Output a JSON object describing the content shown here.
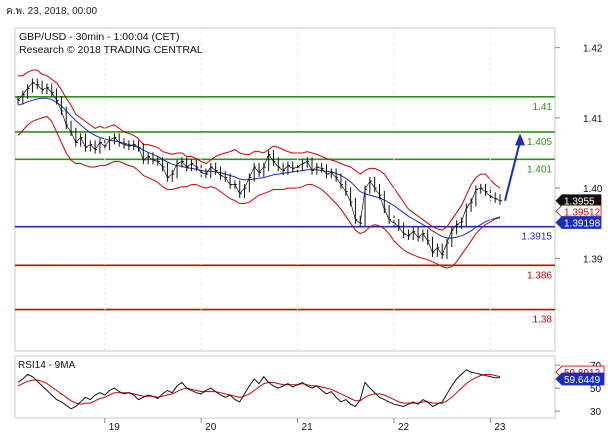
{
  "header": {
    "date_label": "ค.พ. 23, 2018, 00:00",
    "symbol_line": "GBP/USD - 30min - 1:00:04 (CET)",
    "copyright": "Research © 2018 TRADING CENTRAL"
  },
  "colors": {
    "price": "#111111",
    "bollinger": "#cc0000",
    "ma_blue": "#1a2dbd",
    "resistance": "#2f8f1f",
    "support_red": "#cc0000",
    "pivot_blue": "#1a2dbd",
    "arrow": "#1a2dbd",
    "rsi": "#111111",
    "rsi_ma": "#cc0000",
    "tag_black": "#111111",
    "tag_red": "#cc0000",
    "tag_blue": "#1a2dbd"
  },
  "chart_data": {
    "type": "line",
    "main_panel": {
      "y_ticks": [
        "1.42",
        "1.41",
        "1.40",
        "1.39"
      ],
      "x_ticks": [
        "19",
        "20",
        "21",
        "22",
        "23"
      ],
      "ylim": [
        1.3768,
        1.4228
      ],
      "levels": [
        {
          "value": 1.413,
          "label": "1.41",
          "color": "#2f8f1f"
        },
        {
          "value": 1.408,
          "label": "1.405",
          "color": "#2f8f1f"
        },
        {
          "value": 1.4041,
          "label": "1.401",
          "color": "#2f8f1f"
        },
        {
          "value": 1.3945,
          "label": "1.3915",
          "color": "#1a2dbd"
        },
        {
          "value": 1.389,
          "label": "1.386",
          "color": "#cc0000"
        },
        {
          "value": 1.3827,
          "label": "1.38",
          "color": "#cc0000"
        }
      ],
      "price_tags": [
        {
          "label": "1.3955",
          "value": 1.3982,
          "style": "black"
        },
        {
          "label": "1.39512",
          "value": 1.3967,
          "style": "red"
        },
        {
          "label": "1.39198",
          "value": 1.3951,
          "style": "blue"
        }
      ],
      "close": [
        1.4125,
        1.4133,
        1.4142,
        1.415,
        1.4147,
        1.414,
        1.4143,
        1.4136,
        1.4125,
        1.411,
        1.409,
        1.408,
        1.4065,
        1.4072,
        1.4058,
        1.4062,
        1.4055,
        1.4065,
        1.406,
        1.4068,
        1.4072,
        1.4065,
        1.4062,
        1.406,
        1.4062,
        1.4058,
        1.404,
        1.4045,
        1.404,
        1.4038,
        1.403,
        1.4015,
        1.402,
        1.4035,
        1.4038,
        1.403,
        1.4035,
        1.403,
        1.4022,
        1.402,
        1.403,
        1.4025,
        1.4018,
        1.4015,
        1.4005,
        1.4005,
        1.3992,
        1.4,
        1.4015,
        1.403,
        1.4022,
        1.403,
        1.4048,
        1.4038,
        1.403,
        1.4025,
        1.4032,
        1.4028,
        1.403,
        1.4035,
        1.4038,
        1.4025,
        1.403,
        1.4028,
        1.402,
        1.4022,
        1.4015,
        1.4005,
        1.3995,
        1.398,
        1.3955,
        1.395,
        1.3998,
        1.401,
        1.4,
        1.399,
        1.397,
        1.3955,
        1.395,
        1.3945,
        1.3935,
        1.3932,
        1.3938,
        1.393,
        1.3935,
        1.3925,
        1.3908,
        1.3915,
        1.3905,
        1.3922,
        1.394,
        1.3948,
        1.3952,
        1.3972,
        1.398,
        1.3998,
        1.4,
        1.3995,
        1.3988,
        1.3985,
        1.3982
      ],
      "upper_band": [
        1.416,
        1.416,
        1.4165,
        1.4168,
        1.4168,
        1.4162,
        1.416,
        1.4155,
        1.415,
        1.414,
        1.4128,
        1.4118,
        1.4105,
        1.41,
        1.4095,
        1.409,
        1.4085,
        1.4088,
        1.4085,
        1.4088,
        1.409,
        1.4085,
        1.408,
        1.4078,
        1.4075,
        1.407,
        1.4062,
        1.4062,
        1.406,
        1.4058,
        1.4052,
        1.405,
        1.4048,
        1.405,
        1.405,
        1.4045,
        1.4045,
        1.4042,
        1.4038,
        1.4035,
        1.404,
        1.4045,
        1.4048,
        1.405,
        1.4052,
        1.4055,
        1.405,
        1.4048,
        1.4048,
        1.4052,
        1.4052,
        1.405,
        1.4055,
        1.406,
        1.4058,
        1.4055,
        1.4052,
        1.405,
        1.405,
        1.405,
        1.4052,
        1.405,
        1.4048,
        1.4045,
        1.4042,
        1.404,
        1.4038,
        1.4035,
        1.4032,
        1.403,
        1.4025,
        1.402,
        1.4025,
        1.4028,
        1.4028,
        1.4025,
        1.402,
        1.401,
        1.4,
        1.399,
        1.398,
        1.397,
        1.3965,
        1.396,
        1.3955,
        1.395,
        1.3945,
        1.3942,
        1.394,
        1.3945,
        1.3955,
        1.3965,
        1.3975,
        1.399,
        1.4005,
        1.4015,
        1.402,
        1.402,
        1.4012,
        1.4005,
        1.4
      ],
      "lower_band": [
        1.4075,
        1.4082,
        1.409,
        1.4095,
        1.4098,
        1.41,
        1.4102,
        1.4095,
        1.408,
        1.4065,
        1.405,
        1.404,
        1.4035,
        1.4035,
        1.4032,
        1.403,
        1.403,
        1.4032,
        1.4032,
        1.4035,
        1.4038,
        1.4038,
        1.4035,
        1.4032,
        1.403,
        1.4025,
        1.4018,
        1.4015,
        1.4012,
        1.4008,
        1.4002,
        1.3998,
        1.3998,
        1.4,
        1.4002,
        1.4002,
        1.4005,
        1.4005,
        1.4002,
        1.4,
        1.4002,
        1.4,
        1.3995,
        1.399,
        1.3985,
        1.3982,
        1.3978,
        1.3978,
        1.398,
        1.3985,
        1.399,
        1.3992,
        1.3995,
        1.3998,
        1.3998,
        1.3998,
        1.4,
        1.4,
        1.4,
        1.4002,
        1.4005,
        1.4005,
        1.4002,
        1.3998,
        1.3992,
        1.3985,
        1.3978,
        1.397,
        1.396,
        1.395,
        1.394,
        1.3935,
        1.3938,
        1.3945,
        1.3948,
        1.3946,
        1.3942,
        1.3935,
        1.3925,
        1.3918,
        1.3912,
        1.3908,
        1.3905,
        1.3902,
        1.39,
        1.3898,
        1.3895,
        1.3892,
        1.3888,
        1.3886,
        1.3888,
        1.3895,
        1.3905,
        1.3915,
        1.3925,
        1.3935,
        1.3942,
        1.3948,
        1.3952,
        1.3956,
        1.3958
      ],
      "moving_average": [
        1.4118,
        1.412,
        1.4123,
        1.4125,
        1.4127,
        1.4128,
        1.4128,
        1.4126,
        1.4122,
        1.4117,
        1.411,
        1.4103,
        1.4096,
        1.409,
        1.4084,
        1.4079,
        1.4075,
        1.4072,
        1.407,
        1.4068,
        1.4067,
        1.4066,
        1.4064,
        1.4062,
        1.406,
        1.4058,
        1.4054,
        1.4051,
        1.4048,
        1.4045,
        1.4041,
        1.4037,
        1.4034,
        1.4032,
        1.4031,
        1.4029,
        1.4028,
        1.4027,
        1.4025,
        1.4024,
        1.4024,
        1.4023,
        1.4022,
        1.402,
        1.4018,
        1.4016,
        1.4013,
        1.4012,
        1.4012,
        1.4013,
        1.4014,
        1.4015,
        1.4017,
        1.4019,
        1.402,
        1.4021,
        1.4022,
        1.4023,
        1.4024,
        1.4025,
        1.4026,
        1.4026,
        1.4026,
        1.4025,
        1.4024,
        1.4023,
        1.4021,
        1.4018,
        1.4014,
        1.4009,
        1.4002,
        1.3995,
        1.3992,
        1.399,
        1.3988,
        1.3986,
        1.3983,
        1.3979,
        1.3975,
        1.397,
        1.3965,
        1.396,
        1.3956,
        1.3952,
        1.3948,
        1.3944,
        1.3939,
        1.3935,
        1.3931,
        1.3929,
        1.3929,
        1.393,
        1.3932,
        1.3935,
        1.3939,
        1.3944,
        1.3948,
        1.3952,
        1.3955,
        1.3957,
        1.3959
      ],
      "projection": {
        "from": 1.3982,
        "to": 1.4078
      }
    },
    "rsi_panel": {
      "label": "RSI14 - 9MA",
      "y_ticks": [
        "70",
        "50",
        "30"
      ],
      "ylim": [
        24,
        78
      ],
      "tags": [
        {
          "label": "59.8912",
          "value": 64,
          "style": "red"
        },
        {
          "label": "59.6449",
          "value": 58,
          "style": "blue"
        }
      ],
      "rsi": [
        55,
        58,
        62,
        60,
        56,
        52,
        48,
        44,
        40,
        38,
        35,
        32,
        34,
        38,
        42,
        40,
        44,
        46,
        44,
        48,
        50,
        47,
        45,
        46,
        44,
        40,
        42,
        44,
        43,
        41,
        45,
        48,
        46,
        52,
        55,
        50,
        48,
        46,
        45,
        48,
        50,
        47,
        44,
        42,
        44,
        40,
        38,
        45,
        52,
        58,
        54,
        60,
        55,
        52,
        50,
        52,
        54,
        51,
        53,
        55,
        52,
        50,
        52,
        48,
        45,
        47,
        42,
        38,
        40,
        36,
        34,
        40,
        55,
        50,
        46,
        42,
        40,
        38,
        36,
        35,
        34,
        36,
        38,
        36,
        40,
        38,
        34,
        36,
        38,
        45,
        52,
        58,
        62,
        66,
        64,
        63,
        62,
        61,
        60,
        59,
        59
      ],
      "rsi_ma": [
        52,
        54,
        56,
        57,
        57,
        56,
        54,
        51,
        48,
        45,
        42,
        39,
        37,
        36,
        37,
        37,
        39,
        41,
        42,
        44,
        46,
        46,
        46,
        46,
        45,
        44,
        43,
        43,
        43,
        42,
        43,
        44,
        45,
        47,
        49,
        50,
        49,
        48,
        47,
        47,
        47,
        47,
        46,
        45,
        44,
        43,
        42,
        43,
        45,
        48,
        51,
        54,
        55,
        55,
        54,
        53,
        53,
        53,
        53,
        54,
        53,
        52,
        52,
        51,
        50,
        49,
        47,
        45,
        43,
        41,
        39,
        39,
        42,
        44,
        45,
        45,
        44,
        42,
        40,
        38,
        37,
        37,
        37,
        37,
        38,
        38,
        37,
        37,
        37,
        39,
        42,
        46,
        50,
        54,
        57,
        59,
        61,
        62,
        62,
        61,
        60
      ]
    }
  }
}
